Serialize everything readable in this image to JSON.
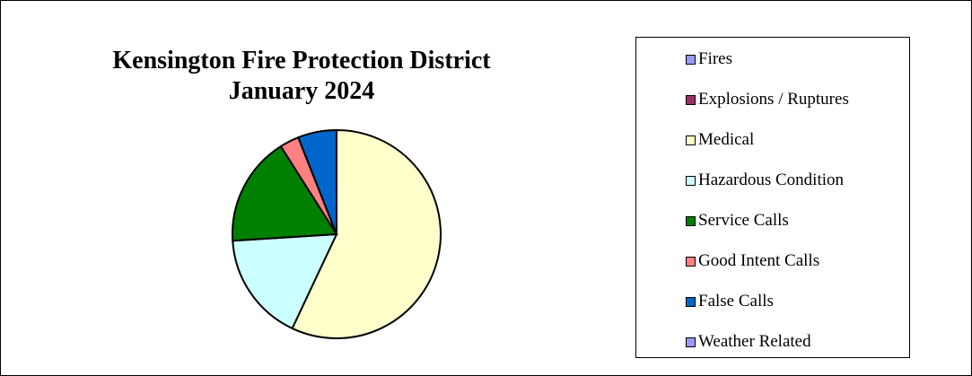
{
  "chart_data": {
    "type": "pie",
    "title": "Kensington Fire Protection District",
    "subtitle": "January 2024",
    "legend_position": "right",
    "slices": [
      {
        "name": "Fires",
        "value": 0,
        "color": "#9999ff"
      },
      {
        "name": "Explosions / Ruptures",
        "value": 0,
        "color": "#993366"
      },
      {
        "name": "Medical",
        "value": 57,
        "color": "#ffffcc"
      },
      {
        "name": "Hazardous Condition",
        "value": 17,
        "color": "#ccffff"
      },
      {
        "name": "Service Calls",
        "value": 17,
        "color": "#008000"
      },
      {
        "name": "Good Intent Calls",
        "value": 3,
        "color": "#ff8080"
      },
      {
        "name": "False Calls",
        "value": 6,
        "color": "#0066cc"
      },
      {
        "name": "Weather Related",
        "value": 0,
        "color": "#9999ff"
      }
    ]
  }
}
